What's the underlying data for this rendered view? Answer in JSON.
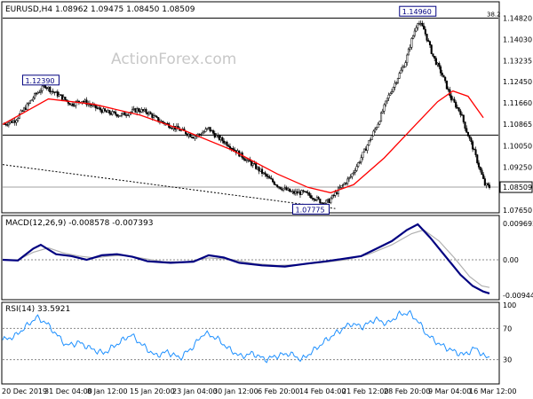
{
  "chart_data": [
    {
      "type": "line",
      "kind": "candlestick",
      "title": "EURUSD,H4  1.08962 1.09475 1.08450 1.08509",
      "watermark": "ActionForex.com",
      "ylim": [
        1.0765,
        1.149
      ],
      "y_ticks": [
        "1.14820",
        "1.14030",
        "1.13235",
        "1.12450",
        "1.11660",
        "1.10865",
        "1.10050",
        "1.09250",
        "1.08509",
        "1.07650"
      ],
      "y_tick_values": [
        1.1482,
        1.1403,
        1.13235,
        1.1245,
        1.1166,
        1.10865,
        1.1005,
        1.0925,
        1.08509,
        1.0765
      ],
      "price_path": [
        [
          0,
          1.1085
        ],
        [
          8,
          1.11
        ],
        [
          16,
          1.1155
        ],
        [
          22,
          1.12
        ],
        [
          28,
          1.123
        ],
        [
          32,
          1.121
        ],
        [
          38,
          1.119
        ],
        [
          45,
          1.116
        ],
        [
          52,
          1.1175
        ],
        [
          60,
          1.115
        ],
        [
          68,
          1.113
        ],
        [
          78,
          1.112
        ],
        [
          88,
          1.114
        ],
        [
          95,
          1.113
        ],
        [
          102,
          1.11
        ],
        [
          110,
          1.108
        ],
        [
          118,
          1.106
        ],
        [
          125,
          1.104
        ],
        [
          130,
          1.105
        ],
        [
          135,
          1.107
        ],
        [
          140,
          1.104
        ],
        [
          148,
          1.101
        ],
        [
          156,
          1.097
        ],
        [
          165,
          1.093
        ],
        [
          175,
          1.088
        ],
        [
          182,
          1.085
        ],
        [
          190,
          1.083
        ],
        [
          197,
          1.083
        ],
        [
          205,
          1.081
        ],
        [
          210,
          1.079
        ],
        [
          214,
          1.08
        ],
        [
          220,
          1.084
        ],
        [
          228,
          1.089
        ],
        [
          234,
          1.095
        ],
        [
          240,
          1.102
        ],
        [
          246,
          1.109
        ],
        [
          252,
          1.118
        ],
        [
          258,
          1.125
        ],
        [
          264,
          1.132
        ],
        [
          268,
          1.14
        ],
        [
          272,
          1.147
        ],
        [
          276,
          1.144
        ],
        [
          282,
          1.134
        ],
        [
          288,
          1.127
        ],
        [
          294,
          1.118
        ],
        [
          300,
          1.113
        ],
        [
          304,
          1.106
        ],
        [
          308,
          1.1
        ],
        [
          312,
          1.093
        ],
        [
          316,
          1.086
        ],
        [
          319,
          1.0851
        ]
      ],
      "series": [
        {
          "name": "",
          "values": [
            [
              0,
              1.1085
            ],
            [
              30,
              1.118
            ],
            [
              60,
              1.116
            ],
            [
              90,
              1.112
            ],
            [
              120,
              1.106
            ],
            [
              150,
              1.099
            ],
            [
              180,
              1.09
            ],
            [
              200,
              1.085
            ],
            [
              215,
              1.083
            ],
            [
              230,
              1.086
            ],
            [
              250,
              1.096
            ],
            [
              270,
              1.108
            ],
            [
              285,
              1.117
            ],
            [
              295,
              1.121
            ],
            [
              305,
              1.119
            ],
            [
              315,
              1.111
            ]
          ],
          "color": "#ff0000"
        }
      ],
      "horizontal_levels": [
        {
          "value": 1.1482,
          "label": "38.2",
          "color": "#000000"
        },
        {
          "value": 1.1045,
          "label": "1.10450",
          "color": "#000000"
        },
        {
          "value": 1.08509,
          "label": "1.08509",
          "color": "#a0a0a0"
        }
      ],
      "trendline": {
        "from": [
          0,
          1.0935
        ],
        "to": [
          218,
          1.0771
        ]
      },
      "annotations": [
        {
          "label": "1.12390",
          "x": 25,
          "y": 1.1239
        },
        {
          "label": "1.14960",
          "x": 272,
          "y": 1.1496
        },
        {
          "label": "1.07775",
          "x": 202,
          "y": 1.0777
        }
      ],
      "x_tick_labels": [
        "20 Dec 2019",
        "31 Dec 04:00",
        "8 Jan 12:00",
        "15 Jan 20:00",
        "23 Jan 04:00",
        "30 Jan 12:00",
        "6 Feb 20:00",
        "14 Feb 04:00",
        "21 Feb 12:00",
        "28 Feb 20:00",
        "9 Mar 04:00",
        "16 Mar 12:00"
      ]
    },
    {
      "type": "line",
      "title": "MACD(12,26,9) -0.008578 -0.007393",
      "ylim": [
        -0.0102,
        0.0102
      ],
      "y_ticks": [
        "0.009692",
        "0.00",
        "-0.009449"
      ],
      "y_tick_values": [
        0.009692,
        0.0,
        -0.009449
      ],
      "series": [
        {
          "name": "",
          "color": "#000080",
          "values": [
            [
              0,
              0.0
            ],
            [
              10,
              -0.0002
            ],
            [
              20,
              0.003
            ],
            [
              25,
              0.004
            ],
            [
              35,
              0.0015
            ],
            [
              45,
              0.001
            ],
            [
              55,
              0.0
            ],
            [
              65,
              0.0012
            ],
            [
              75,
              0.0015
            ],
            [
              85,
              0.0008
            ],
            [
              95,
              -0.0004
            ],
            [
              110,
              -0.0008
            ],
            [
              125,
              -0.0005
            ],
            [
              135,
              0.0012
            ],
            [
              145,
              0.0006
            ],
            [
              155,
              -0.0008
            ],
            [
              170,
              -0.0015
            ],
            [
              185,
              -0.0018
            ],
            [
              200,
              -0.001
            ],
            [
              212,
              -0.0004
            ],
            [
              222,
              0.0002
            ],
            [
              235,
              0.001
            ],
            [
              245,
              0.003
            ],
            [
              255,
              0.005
            ],
            [
              265,
              0.008
            ],
            [
              272,
              0.0095
            ],
            [
              280,
              0.006
            ],
            [
              290,
              0.001
            ],
            [
              300,
              -0.004
            ],
            [
              308,
              -0.007
            ],
            [
              315,
              -0.0085
            ],
            [
              319,
              -0.009
            ]
          ]
        },
        {
          "name": "",
          "color": "#b0b0b0",
          "values": [
            [
              0,
              0.0
            ],
            [
              10,
              0.0
            ],
            [
              20,
              0.002
            ],
            [
              30,
              0.0032
            ],
            [
              40,
              0.0018
            ],
            [
              50,
              0.001
            ],
            [
              60,
              0.0005
            ],
            [
              70,
              0.001
            ],
            [
              80,
              0.0012
            ],
            [
              90,
              0.0005
            ],
            [
              105,
              -0.0005
            ],
            [
              120,
              -0.0006
            ],
            [
              135,
              0.0005
            ],
            [
              150,
              0.0001
            ],
            [
              165,
              -0.001
            ],
            [
              180,
              -0.0015
            ],
            [
              195,
              -0.0013
            ],
            [
              210,
              -0.0007
            ],
            [
              225,
              0.0
            ],
            [
              240,
              0.0015
            ],
            [
              255,
              0.004
            ],
            [
              268,
              0.007
            ],
            [
              276,
              0.008
            ],
            [
              286,
              0.005
            ],
            [
              296,
              0.0005
            ],
            [
              306,
              -0.0045
            ],
            [
              314,
              -0.007
            ],
            [
              319,
              -0.0074
            ]
          ]
        }
      ]
    },
    {
      "type": "line",
      "title": "RSI(14) 33.5921",
      "ylim": [
        0,
        100
      ],
      "y_ticks": [
        "100",
        "70",
        "30",
        "0"
      ],
      "y_tick_values": [
        100,
        70,
        30,
        0
      ],
      "series": [
        {
          "name": "",
          "color": "#1e90ff",
          "values": [
            [
              0,
              55
            ],
            [
              8,
              60
            ],
            [
              15,
              72
            ],
            [
              22,
              84
            ],
            [
              28,
              78
            ],
            [
              34,
              65
            ],
            [
              42,
              48
            ],
            [
              50,
              52
            ],
            [
              58,
              44
            ],
            [
              66,
              38
            ],
            [
              75,
              50
            ],
            [
              84,
              62
            ],
            [
              92,
              48
            ],
            [
              100,
              35
            ],
            [
              108,
              40
            ],
            [
              116,
              32
            ],
            [
              124,
              45
            ],
            [
              132,
              64
            ],
            [
              140,
              58
            ],
            [
              148,
              44
            ],
            [
              156,
              34
            ],
            [
              164,
              38
            ],
            [
              172,
              30
            ],
            [
              180,
              35
            ],
            [
              188,
              38
            ],
            [
              196,
              30
            ],
            [
              204,
              42
            ],
            [
              212,
              55
            ],
            [
              220,
              66
            ],
            [
              228,
              76
            ],
            [
              236,
              72
            ],
            [
              244,
              82
            ],
            [
              252,
              76
            ],
            [
              260,
              88
            ],
            [
              266,
              90
            ],
            [
              272,
              80
            ],
            [
              278,
              62
            ],
            [
              286,
              50
            ],
            [
              294,
              42
            ],
            [
              302,
              36
            ],
            [
              310,
              45
            ],
            [
              316,
              33
            ],
            [
              319,
              33.6
            ]
          ]
        }
      ],
      "reference_levels": [
        70,
        30
      ]
    }
  ]
}
